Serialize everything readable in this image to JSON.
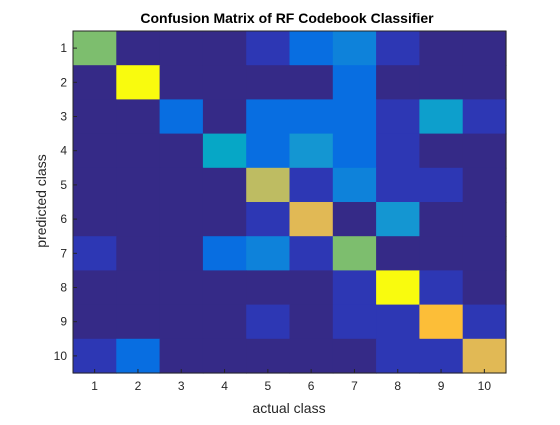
{
  "chart_data": {
    "type": "heatmap",
    "title": "Confusion Matrix of RF Codebook Classifier",
    "xlabel": "actual class",
    "ylabel": "predicted class",
    "x_categories": [
      "1",
      "2",
      "3",
      "4",
      "5",
      "6",
      "7",
      "8",
      "9",
      "10"
    ],
    "y_categories": [
      "1",
      "2",
      "3",
      "4",
      "5",
      "6",
      "7",
      "8",
      "9",
      "10"
    ],
    "colormap": "parula",
    "values": [
      [
        0.55,
        0.0,
        0.0,
        0.0,
        0.1,
        0.25,
        0.3,
        0.1,
        0.0,
        0.0
      ],
      [
        0.0,
        1.0,
        0.0,
        0.0,
        0.0,
        0.0,
        0.25,
        0.0,
        0.0,
        0.0
      ],
      [
        0.0,
        0.0,
        0.25,
        0.0,
        0.25,
        0.25,
        0.25,
        0.1,
        0.4,
        0.1
      ],
      [
        0.0,
        0.0,
        0.0,
        0.45,
        0.25,
        0.35,
        0.25,
        0.1,
        0.0,
        0.0
      ],
      [
        0.0,
        0.0,
        0.0,
        0.0,
        0.7,
        0.1,
        0.3,
        0.1,
        0.1,
        0.0
      ],
      [
        0.0,
        0.0,
        0.0,
        0.0,
        0.1,
        0.8,
        0.0,
        0.35,
        0.0,
        0.0
      ],
      [
        0.1,
        0.0,
        0.0,
        0.25,
        0.3,
        0.1,
        0.55,
        0.0,
        0.0,
        0.0
      ],
      [
        0.0,
        0.0,
        0.0,
        0.0,
        0.0,
        0.0,
        0.1,
        1.0,
        0.1,
        0.0
      ],
      [
        0.0,
        0.0,
        0.0,
        0.0,
        0.1,
        0.0,
        0.1,
        0.1,
        0.9,
        0.1
      ],
      [
        0.1,
        0.25,
        0.0,
        0.0,
        0.0,
        0.0,
        0.0,
        0.1,
        0.1,
        0.8
      ]
    ]
  }
}
